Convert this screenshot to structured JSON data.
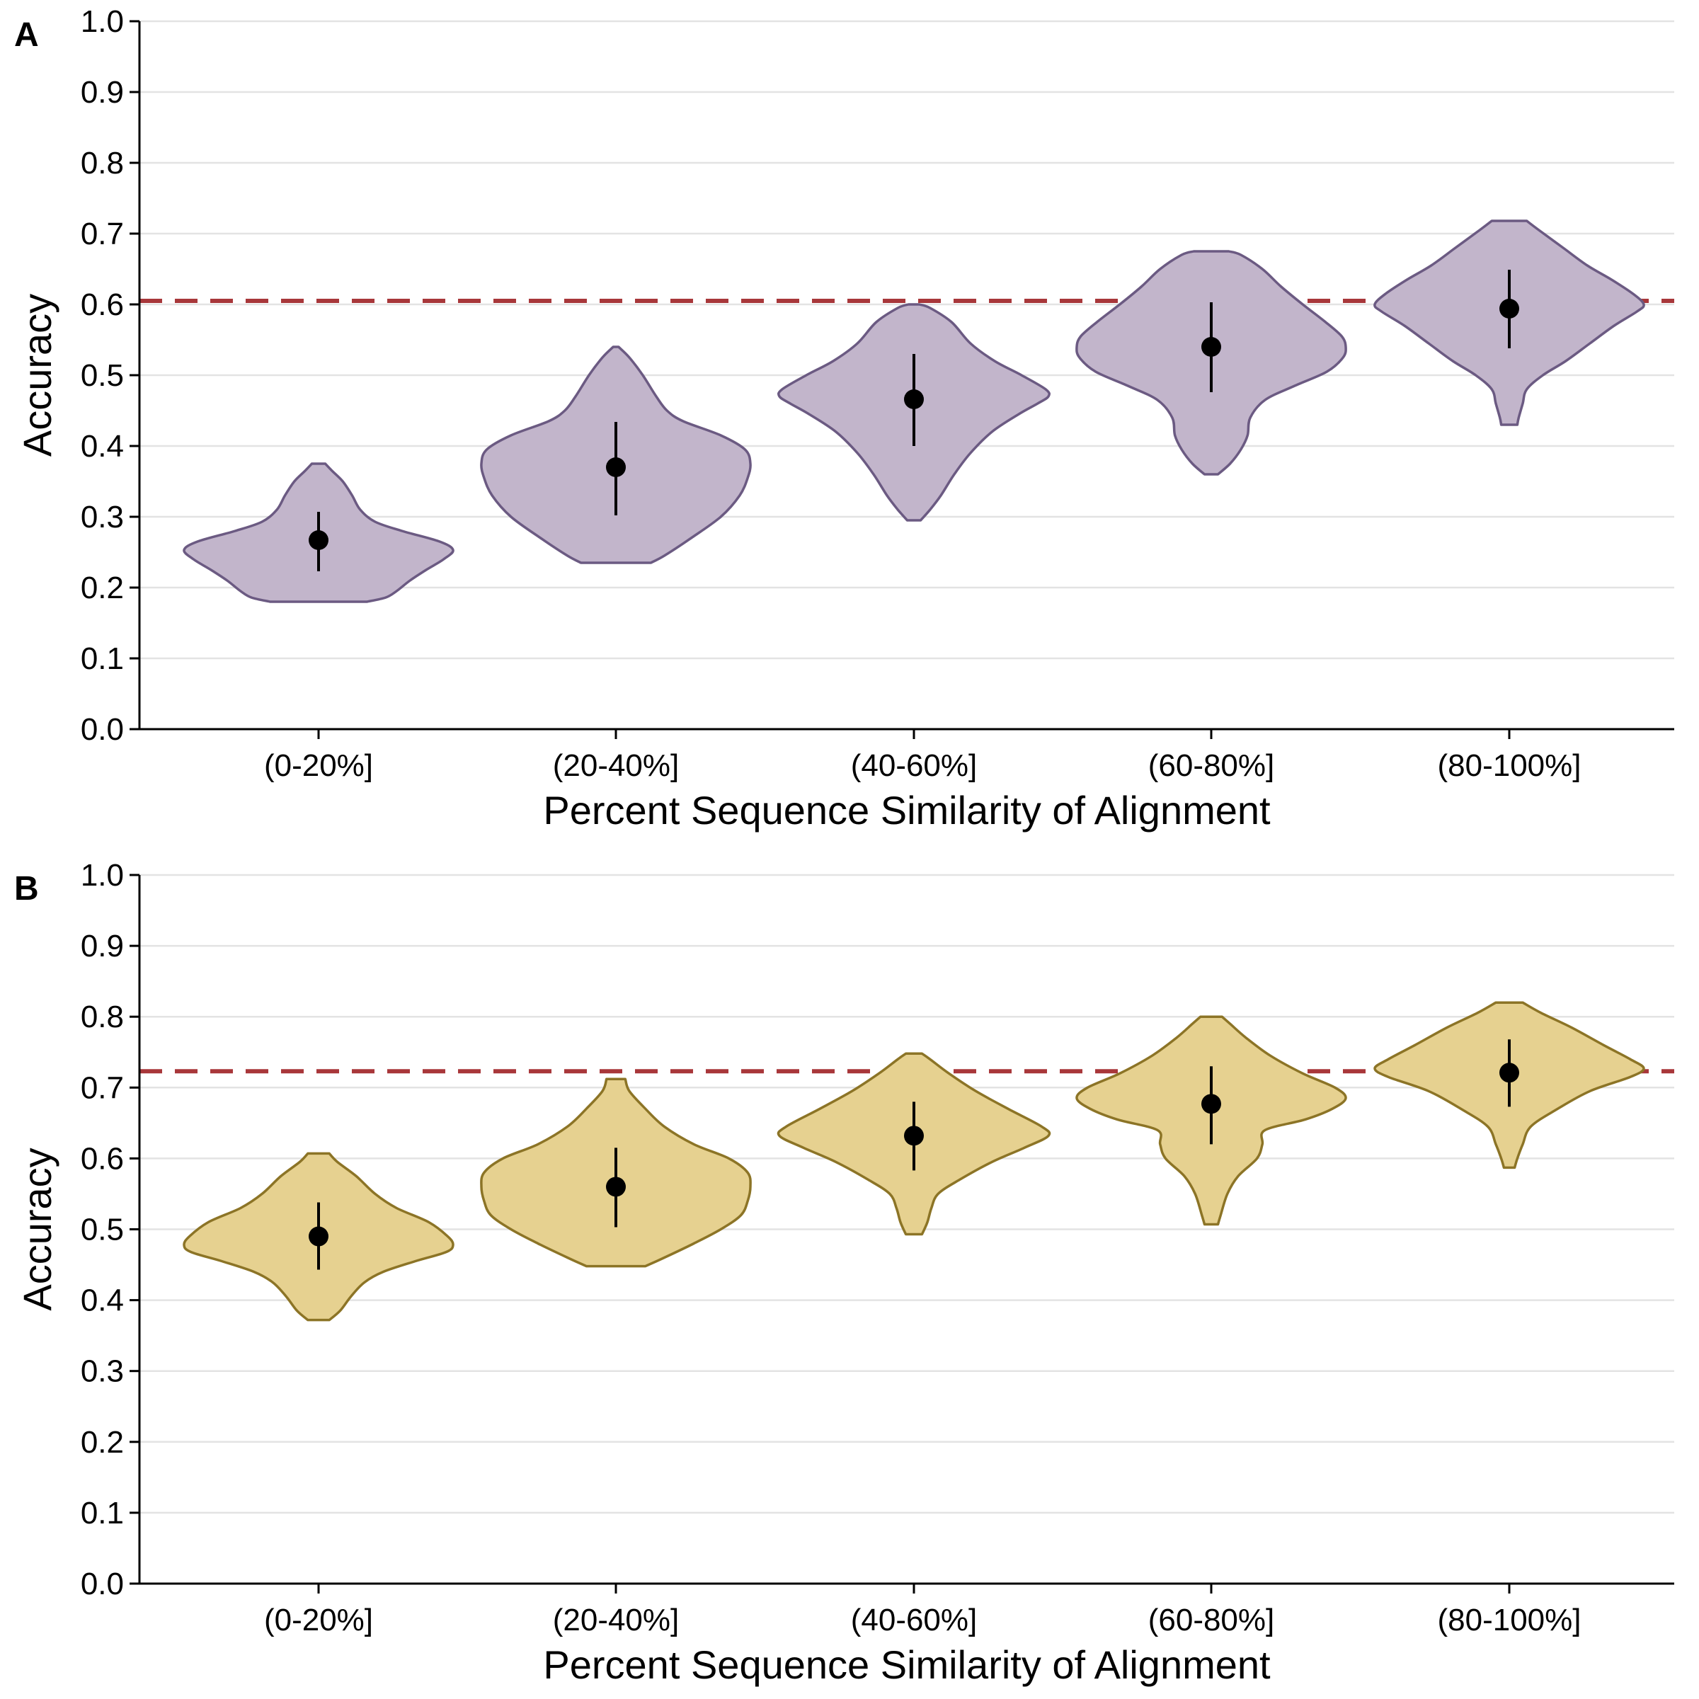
{
  "chart_data": [
    {
      "panel": "A",
      "type": "violin",
      "xlabel": "Percent Sequence Similarity of Alignment",
      "ylabel": "Accuracy",
      "ylim": [
        0,
        1
      ],
      "yticks": [
        "0.0",
        "0.1",
        "0.2",
        "0.3",
        "0.4",
        "0.5",
        "0.6",
        "0.7",
        "0.8",
        "0.9",
        "1.0"
      ],
      "grid": "horizontal",
      "categories": [
        "(0-20%]",
        "(20-40%]",
        "(40-60%]",
        "(60-80%]",
        "(80-100%]"
      ],
      "reference_line": 0.605,
      "colors": {
        "fill": "#c2b5cb",
        "outline": "#6b5a82",
        "reference": "#a8373a"
      },
      "violins": [
        {
          "min": 0.18,
          "max": 0.375,
          "mean": 0.267,
          "err_low": 0.223,
          "err_high": 0.307,
          "density": [
            [
              0.18,
              0.36
            ],
            [
              0.186,
              0.5
            ],
            [
              0.195,
              0.58
            ],
            [
              0.21,
              0.68
            ],
            [
              0.225,
              0.8
            ],
            [
              0.24,
              0.93
            ],
            [
              0.253,
              1.0
            ],
            [
              0.265,
              0.9
            ],
            [
              0.28,
              0.62
            ],
            [
              0.293,
              0.42
            ],
            [
              0.31,
              0.31
            ],
            [
              0.33,
              0.25
            ],
            [
              0.35,
              0.18
            ],
            [
              0.365,
              0.1
            ],
            [
              0.375,
              0.05
            ]
          ]
        },
        {
          "min": 0.235,
          "max": 0.54,
          "mean": 0.37,
          "err_low": 0.302,
          "err_high": 0.434,
          "density": [
            [
              0.235,
              0.26
            ],
            [
              0.245,
              0.36
            ],
            [
              0.27,
              0.56
            ],
            [
              0.3,
              0.78
            ],
            [
              0.33,
              0.92
            ],
            [
              0.355,
              0.98
            ],
            [
              0.375,
              1.0
            ],
            [
              0.395,
              0.96
            ],
            [
              0.415,
              0.78
            ],
            [
              0.435,
              0.5
            ],
            [
              0.45,
              0.38
            ],
            [
              0.47,
              0.3
            ],
            [
              0.5,
              0.2
            ],
            [
              0.525,
              0.1
            ],
            [
              0.54,
              0.02
            ]
          ]
        },
        {
          "min": 0.295,
          "max": 0.6,
          "mean": 0.466,
          "err_low": 0.4,
          "err_high": 0.53,
          "density": [
            [
              0.295,
              0.05
            ],
            [
              0.31,
              0.12
            ],
            [
              0.33,
              0.2
            ],
            [
              0.36,
              0.3
            ],
            [
              0.39,
              0.42
            ],
            [
              0.42,
              0.58
            ],
            [
              0.445,
              0.78
            ],
            [
              0.46,
              0.92
            ],
            [
              0.47,
              1.0
            ],
            [
              0.48,
              0.98
            ],
            [
              0.5,
              0.8
            ],
            [
              0.52,
              0.6
            ],
            [
              0.545,
              0.42
            ],
            [
              0.575,
              0.28
            ],
            [
              0.595,
              0.12
            ],
            [
              0.6,
              0.04
            ]
          ]
        },
        {
          "min": 0.36,
          "max": 0.675,
          "mean": 0.54,
          "err_low": 0.476,
          "err_high": 0.603,
          "density": [
            [
              0.36,
              0.05
            ],
            [
              0.375,
              0.14
            ],
            [
              0.395,
              0.22
            ],
            [
              0.415,
              0.27
            ],
            [
              0.44,
              0.29
            ],
            [
              0.465,
              0.4
            ],
            [
              0.485,
              0.62
            ],
            [
              0.505,
              0.86
            ],
            [
              0.525,
              0.98
            ],
            [
              0.54,
              1.0
            ],
            [
              0.555,
              0.97
            ],
            [
              0.575,
              0.85
            ],
            [
              0.6,
              0.68
            ],
            [
              0.625,
              0.52
            ],
            [
              0.65,
              0.38
            ],
            [
              0.67,
              0.22
            ],
            [
              0.675,
              0.13
            ]
          ]
        },
        {
          "min": 0.43,
          "max": 0.718,
          "mean": 0.594,
          "err_low": 0.538,
          "err_high": 0.649,
          "density": [
            [
              0.43,
              0.06
            ],
            [
              0.44,
              0.07
            ],
            [
              0.46,
              0.1
            ],
            [
              0.48,
              0.13
            ],
            [
              0.5,
              0.25
            ],
            [
              0.52,
              0.42
            ],
            [
              0.545,
              0.6
            ],
            [
              0.57,
              0.78
            ],
            [
              0.59,
              0.95
            ],
            [
              0.6,
              1.0
            ],
            [
              0.615,
              0.92
            ],
            [
              0.635,
              0.76
            ],
            [
              0.655,
              0.58
            ],
            [
              0.68,
              0.4
            ],
            [
              0.705,
              0.22
            ],
            [
              0.718,
              0.13
            ]
          ]
        }
      ]
    },
    {
      "panel": "B",
      "type": "violin",
      "xlabel": "Percent Sequence Similarity of Alignment",
      "ylabel": "Accuracy",
      "ylim": [
        0,
        1
      ],
      "yticks": [
        "0.0",
        "0.1",
        "0.2",
        "0.3",
        "0.4",
        "0.5",
        "0.6",
        "0.7",
        "0.8",
        "0.9",
        "1.0"
      ],
      "grid": "horizontal",
      "categories": [
        "(0-20%]",
        "(20-40%]",
        "(40-60%]",
        "(60-80%]",
        "(80-100%]"
      ],
      "reference_line": 0.723,
      "colors": {
        "fill": "#e6d190",
        "outline": "#8c7426",
        "reference": "#a8373a"
      },
      "violins": [
        {
          "min": 0.372,
          "max": 0.607,
          "mean": 0.49,
          "err_low": 0.443,
          "err_high": 0.538,
          "density": [
            [
              0.372,
              0.08
            ],
            [
              0.385,
              0.16
            ],
            [
              0.405,
              0.24
            ],
            [
              0.425,
              0.34
            ],
            [
              0.44,
              0.48
            ],
            [
              0.455,
              0.72
            ],
            [
              0.468,
              0.95
            ],
            [
              0.478,
              1.0
            ],
            [
              0.49,
              0.96
            ],
            [
              0.51,
              0.82
            ],
            [
              0.53,
              0.58
            ],
            [
              0.55,
              0.42
            ],
            [
              0.575,
              0.28
            ],
            [
              0.595,
              0.14
            ],
            [
              0.607,
              0.08
            ]
          ]
        },
        {
          "min": 0.448,
          "max": 0.712,
          "mean": 0.56,
          "err_low": 0.503,
          "err_high": 0.615,
          "density": [
            [
              0.448,
              0.22
            ],
            [
              0.46,
              0.36
            ],
            [
              0.48,
              0.58
            ],
            [
              0.5,
              0.78
            ],
            [
              0.52,
              0.93
            ],
            [
              0.54,
              0.98
            ],
            [
              0.56,
              1.0
            ],
            [
              0.58,
              0.98
            ],
            [
              0.6,
              0.84
            ],
            [
              0.62,
              0.58
            ],
            [
              0.645,
              0.36
            ],
            [
              0.67,
              0.22
            ],
            [
              0.695,
              0.1
            ],
            [
              0.712,
              0.07
            ]
          ]
        },
        {
          "min": 0.493,
          "max": 0.748,
          "mean": 0.632,
          "err_low": 0.583,
          "err_high": 0.68,
          "density": [
            [
              0.493,
              0.06
            ],
            [
              0.51,
              0.1
            ],
            [
              0.53,
              0.13
            ],
            [
              0.55,
              0.18
            ],
            [
              0.57,
              0.34
            ],
            [
              0.595,
              0.58
            ],
            [
              0.615,
              0.82
            ],
            [
              0.632,
              1.0
            ],
            [
              0.645,
              0.95
            ],
            [
              0.67,
              0.7
            ],
            [
              0.695,
              0.46
            ],
            [
              0.72,
              0.26
            ],
            [
              0.74,
              0.12
            ],
            [
              0.748,
              0.06
            ]
          ]
        },
        {
          "min": 0.507,
          "max": 0.8,
          "mean": 0.677,
          "err_low": 0.62,
          "err_high": 0.73,
          "density": [
            [
              0.507,
              0.05
            ],
            [
              0.52,
              0.07
            ],
            [
              0.55,
              0.12
            ],
            [
              0.575,
              0.2
            ],
            [
              0.6,
              0.34
            ],
            [
              0.62,
              0.38
            ],
            [
              0.64,
              0.4
            ],
            [
              0.655,
              0.7
            ],
            [
              0.67,
              0.9
            ],
            [
              0.685,
              1.0
            ],
            [
              0.7,
              0.92
            ],
            [
              0.72,
              0.68
            ],
            [
              0.745,
              0.44
            ],
            [
              0.77,
              0.26
            ],
            [
              0.79,
              0.14
            ],
            [
              0.8,
              0.08
            ]
          ]
        },
        {
          "min": 0.587,
          "max": 0.82,
          "mean": 0.721,
          "err_low": 0.673,
          "err_high": 0.768,
          "density": [
            [
              0.587,
              0.04
            ],
            [
              0.6,
              0.06
            ],
            [
              0.62,
              0.1
            ],
            [
              0.645,
              0.16
            ],
            [
              0.67,
              0.36
            ],
            [
              0.695,
              0.6
            ],
            [
              0.715,
              0.9
            ],
            [
              0.727,
              1.0
            ],
            [
              0.74,
              0.9
            ],
            [
              0.76,
              0.7
            ],
            [
              0.785,
              0.46
            ],
            [
              0.805,
              0.24
            ],
            [
              0.82,
              0.1
            ]
          ]
        }
      ]
    }
  ]
}
